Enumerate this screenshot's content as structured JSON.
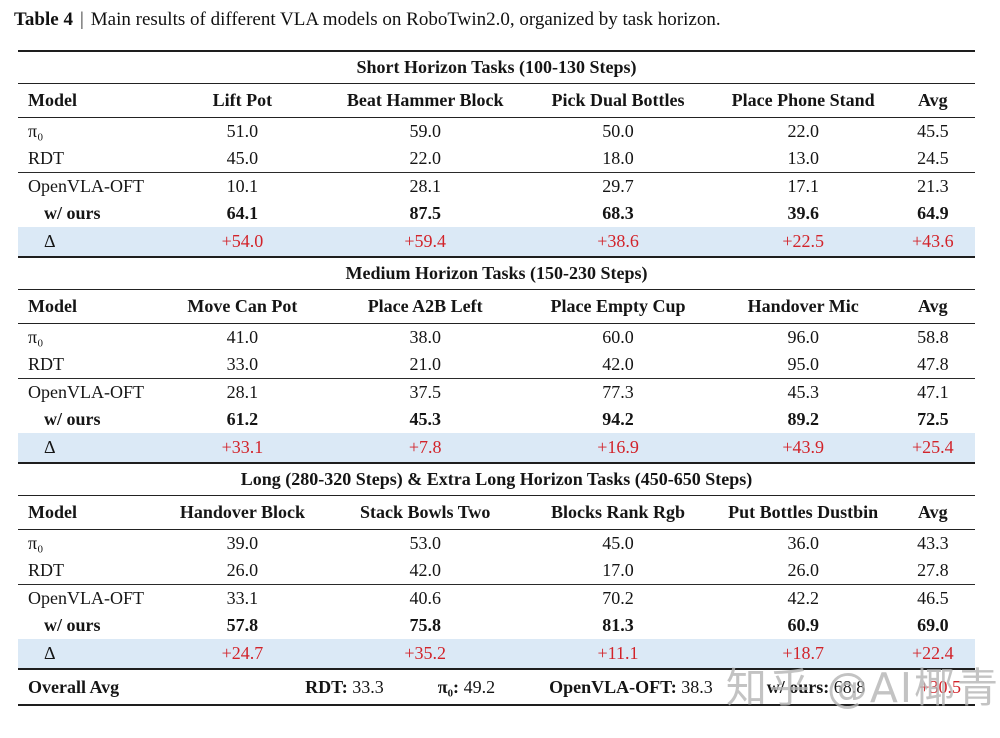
{
  "caption": {
    "label": "Table 4",
    "separator": "|",
    "text": "Main results of different VLA models on RoboTwin2.0, organized by task horizon."
  },
  "colors": {
    "accent_red": "#d2232a",
    "delta_row_bg": "#dbe9f6",
    "rule_color": "#1e1e1e",
    "watermark_gray": "#b4b4b4"
  },
  "sections": [
    {
      "title": "Short Horizon Tasks (100-130 Steps)",
      "headers": [
        "Model",
        "Lift Pot",
        "Beat Hammer Block",
        "Pick Dual Bottles",
        "Place Phone Stand",
        "Avg"
      ],
      "rows_a": [
        {
          "model": "π₀",
          "values": [
            "51.0",
            "59.0",
            "50.0",
            "22.0",
            "45.5"
          ]
        },
        {
          "model": "RDT",
          "values": [
            "45.0",
            "22.0",
            "18.0",
            "13.0",
            "24.5"
          ]
        }
      ],
      "rows_b": [
        {
          "model": "OpenVLA-OFT",
          "values": [
            "10.1",
            "28.1",
            "29.7",
            "17.1",
            "21.3"
          ]
        },
        {
          "model": "w/ ours",
          "values": [
            "64.1",
            "87.5",
            "68.3",
            "39.6",
            "64.9"
          ]
        }
      ],
      "delta": {
        "model": "Δ",
        "values": [
          "+54.0",
          "+59.4",
          "+38.6",
          "+22.5",
          "+43.6"
        ]
      }
    },
    {
      "title": "Medium Horizon Tasks (150-230 Steps)",
      "headers": [
        "Model",
        "Move Can Pot",
        "Place A2B Left",
        "Place Empty Cup",
        "Handover Mic",
        "Avg"
      ],
      "rows_a": [
        {
          "model": "π₀",
          "values": [
            "41.0",
            "38.0",
            "60.0",
            "96.0",
            "58.8"
          ]
        },
        {
          "model": "RDT",
          "values": [
            "33.0",
            "21.0",
            "42.0",
            "95.0",
            "47.8"
          ]
        }
      ],
      "rows_b": [
        {
          "model": "OpenVLA-OFT",
          "values": [
            "28.1",
            "37.5",
            "77.3",
            "45.3",
            "47.1"
          ]
        },
        {
          "model": "w/ ours",
          "values": [
            "61.2",
            "45.3",
            "94.2",
            "89.2",
            "72.5"
          ]
        }
      ],
      "delta": {
        "model": "Δ",
        "values": [
          "+33.1",
          "+7.8",
          "+16.9",
          "+43.9",
          "+25.4"
        ]
      }
    },
    {
      "title": "Long (280-320 Steps) & Extra Long Horizon Tasks (450-650 Steps)",
      "headers": [
        "Model",
        "Handover Block",
        "Stack Bowls Two",
        "Blocks Rank Rgb",
        "Put Bottles Dustbin",
        "Avg"
      ],
      "rows_a": [
        {
          "model": "π₀",
          "values": [
            "39.0",
            "53.0",
            "45.0",
            "36.0",
            "43.3"
          ]
        },
        {
          "model": "RDT",
          "values": [
            "26.0",
            "42.0",
            "17.0",
            "26.0",
            "27.8"
          ]
        }
      ],
      "rows_b": [
        {
          "model": "OpenVLA-OFT",
          "values": [
            "33.1",
            "40.6",
            "70.2",
            "42.2",
            "46.5"
          ]
        },
        {
          "model": "w/ ours",
          "values": [
            "57.8",
            "75.8",
            "81.3",
            "60.9",
            "69.0"
          ]
        }
      ],
      "delta": {
        "model": "Δ",
        "values": [
          "+24.7",
          "+35.2",
          "+11.1",
          "+18.7",
          "+22.4"
        ]
      }
    }
  ],
  "overall": {
    "label": "Overall Avg",
    "entries": [
      {
        "name": "RDT:",
        "value": "33.3"
      },
      {
        "name": "π₀:",
        "value": "49.2"
      },
      {
        "name": "OpenVLA-OFT:",
        "value": "38.3"
      },
      {
        "name": "w/ ours:",
        "value": "68.8"
      }
    ],
    "delta": "+30.5"
  },
  "watermark": "知乎 @AI椰青"
}
